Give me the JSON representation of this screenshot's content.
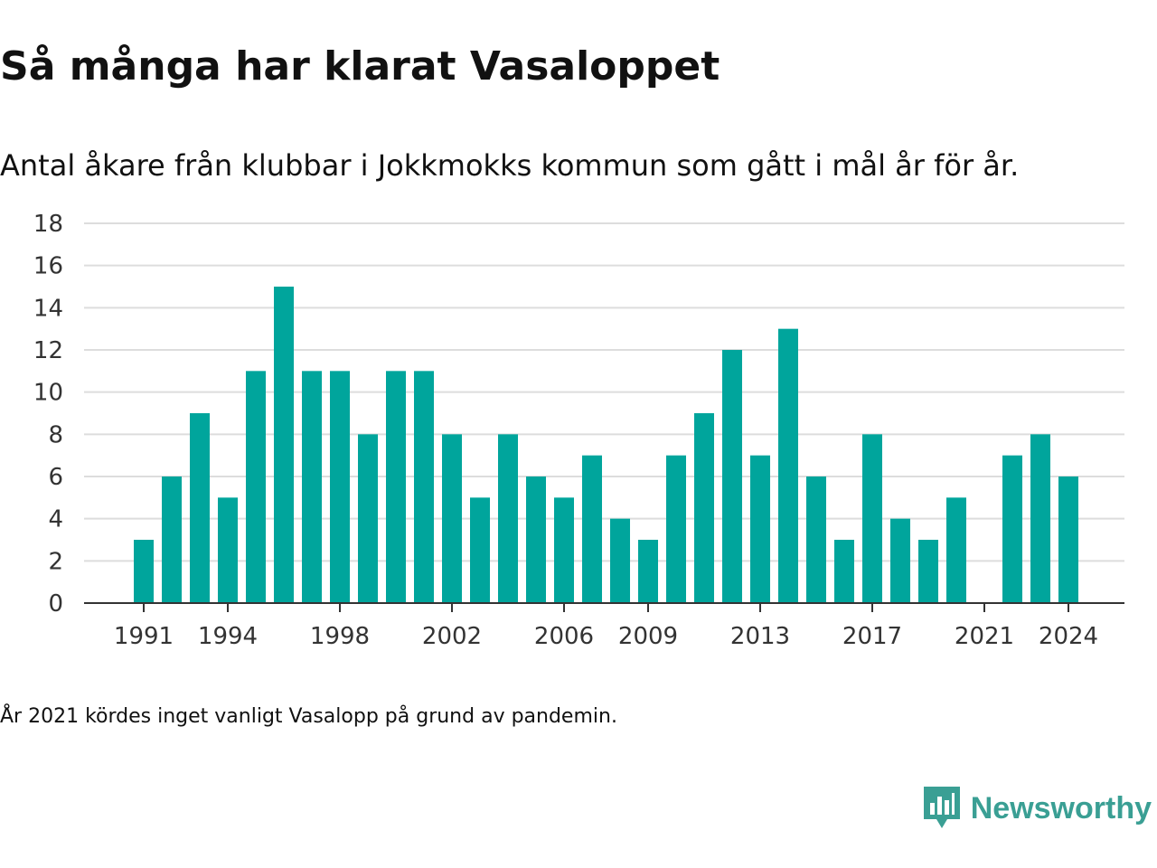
{
  "header": {
    "title": "Så många har klarat Vasaloppet",
    "subtitle": "Antal åkare från klubbar i Jokkmokks kommun som gått i mål år för år."
  },
  "footnote": "År 2021 kördes inget vanligt Vasalopp på grund av pandemin.",
  "brand": {
    "name": "Newsworthy",
    "icon": "newsworthy-logo-icon",
    "color": "#3a9f94"
  },
  "colors": {
    "bar": "#00a59c",
    "grid": "#dddddd",
    "axis": "#333333"
  },
  "chart_data": {
    "type": "bar",
    "categories": [
      1991,
      1992,
      1993,
      1994,
      1995,
      1996,
      1997,
      1998,
      1999,
      2000,
      2001,
      2002,
      2003,
      2004,
      2005,
      2006,
      2007,
      2008,
      2009,
      2010,
      2011,
      2012,
      2013,
      2014,
      2015,
      2016,
      2017,
      2018,
      2019,
      2020,
      2021,
      2022,
      2023,
      2024
    ],
    "values": [
      3,
      6,
      9,
      5,
      11,
      15,
      11,
      11,
      8,
      11,
      11,
      8,
      5,
      8,
      6,
      5,
      7,
      4,
      3,
      7,
      9,
      12,
      7,
      13,
      6,
      3,
      8,
      4,
      3,
      5,
      0,
      7,
      8,
      6
    ],
    "x_tick_labels": [
      "1991",
      "1994",
      "1998",
      "2002",
      "2006",
      "2009",
      "2013",
      "2017",
      "2021",
      "2024"
    ],
    "y_ticks": [
      0,
      2,
      4,
      6,
      8,
      10,
      12,
      14,
      16,
      18
    ],
    "ylim": [
      0,
      18
    ],
    "xlabel": "",
    "ylabel": "",
    "grid": true
  }
}
